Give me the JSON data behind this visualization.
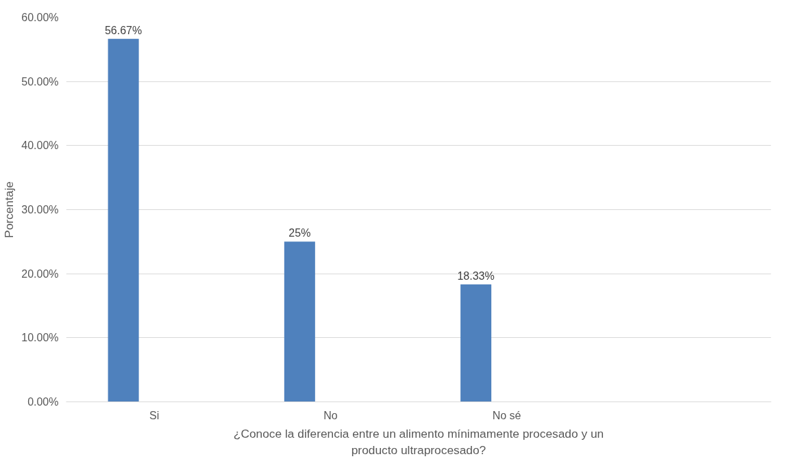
{
  "chart_data": {
    "type": "bar",
    "xlabel": "¿Conoce la diferencia entre un alimento mínimamente procesado y un producto ultraprocesado?",
    "ylabel": "Porcentaje",
    "categories": [
      "Si",
      "No",
      "No sé",
      null
    ],
    "values": [
      56.67,
      25,
      18.33,
      null
    ],
    "value_labels": [
      "56.67%",
      "25%",
      "18.33%",
      null
    ],
    "color": "#4f81bd",
    "ylim": [
      0,
      60
    ],
    "yticks": [
      {
        "value": 0,
        "label": "0.00%"
      },
      {
        "value": 10,
        "label": "10.00%"
      },
      {
        "value": 20,
        "label": "20.00%"
      },
      {
        "value": 30,
        "label": "30.00%"
      },
      {
        "value": 40,
        "label": "40.00%"
      },
      {
        "value": 50,
        "label": "50.00%"
      },
      {
        "value": 60,
        "label": "60.00%"
      }
    ],
    "grid": "y"
  }
}
